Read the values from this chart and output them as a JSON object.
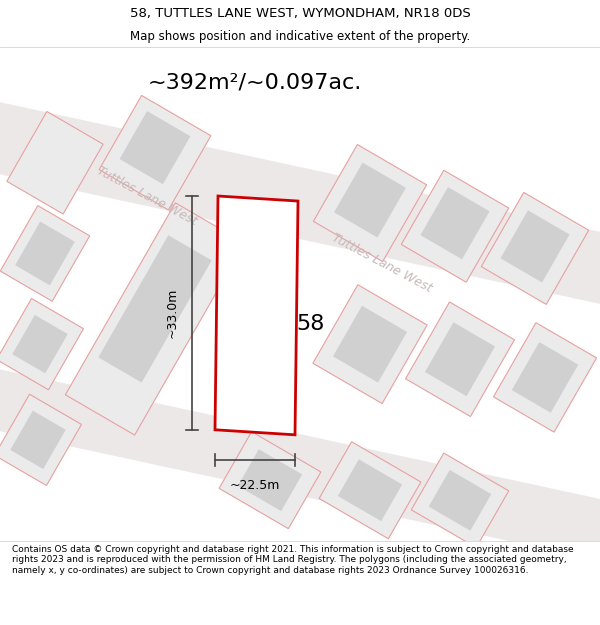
{
  "title": "58, TUTTLES LANE WEST, WYMONDHAM, NR18 0DS",
  "subtitle": "Map shows position and indicative extent of the property.",
  "area_label": "~392m²/~0.097ac.",
  "number_label": "58",
  "width_label": "~22.5m",
  "height_label": "~33.0m",
  "road_label_1": "Tuttles Lane West",
  "road_label_2": "Tuttles Lane West",
  "footer": "Contains OS data © Crown copyright and database right 2021. This information is subject to Crown copyright and database rights 2023 and is reproduced with the permission of HM Land Registry. The polygons (including the associated geometry, namely x, y co-ordinates) are subject to Crown copyright and database rights 2023 Ordnance Survey 100026316.",
  "bg_color": "#f5f5f5",
  "map_bg": "#ffffff",
  "plot_color": "#cc0000",
  "plot_fill": "#ffffff",
  "building_fill": "#d8d8d8",
  "plot_edge": "#e8a0a0",
  "dim_line_color": "#444444",
  "road_text_color": "#c8b8b8",
  "title_fontsize": 9.5,
  "subtitle_fontsize": 8.5,
  "area_fontsize": 16,
  "label_fontsize": 16,
  "footer_fontsize": 6.5
}
